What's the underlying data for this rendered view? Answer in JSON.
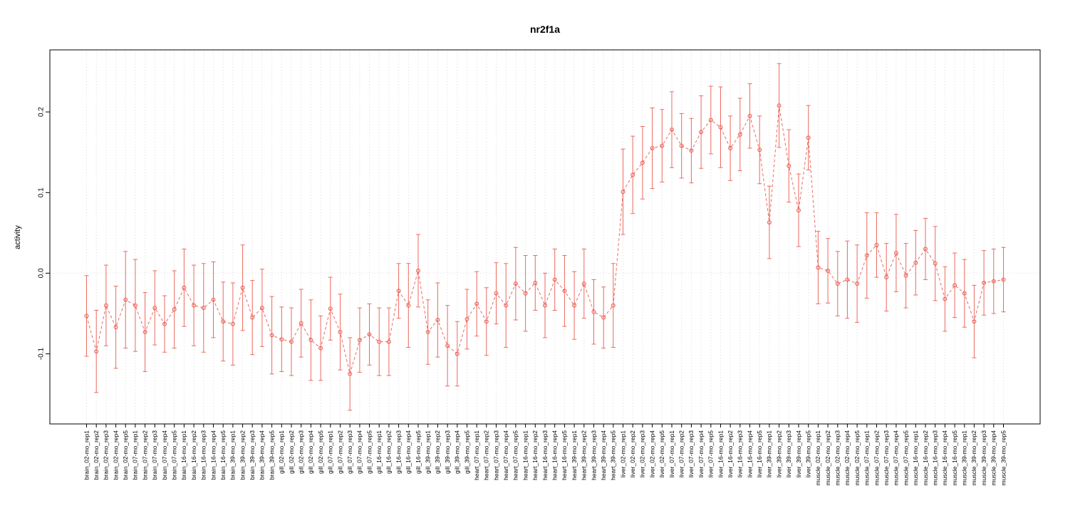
{
  "chart_data": {
    "type": "scatter",
    "title": "nr2f1a",
    "xlabel": "",
    "ylabel": "activity",
    "ylim": [
      -0.187,
      0.277
    ],
    "yticks": [
      -0.1,
      0.0,
      0.1,
      0.2
    ],
    "grid": true,
    "legend": false,
    "point_style": "open-circle-with-error-bars",
    "line_style": "dashed",
    "point_color": "#ec6a5f",
    "grid_color": "#dcdcdc",
    "categories": [
      "brain_02-mo_rep1",
      "brain_02-mo_rep2",
      "brain_02-mo_rep3",
      "brain_02-mo_rep4",
      "brain_02-mo_rep5",
      "brain_07-mo_rep1",
      "brain_07-mo_rep2",
      "brain_07-mo_rep3",
      "brain_07-mo_rep4",
      "brain_07-mo_rep5",
      "brain_16-mo_rep1",
      "brain_16-mo_rep2",
      "brain_16-mo_rep3",
      "brain_16-mo_rep4",
      "brain_16-mo_rep5",
      "brain_39-mo_rep1",
      "brain_39-mo_rep2",
      "brain_39-mo_rep3",
      "brain_39-mo_rep4",
      "brain_39-mo_rep5",
      "gill_02-mo_rep1",
      "gill_02-mo_rep2",
      "gill_02-mo_rep3",
      "gill_02-mo_rep4",
      "gill_02-mo_rep5",
      "gill_07-mo_rep1",
      "gill_07-mo_rep2",
      "gill_07-mo_rep3",
      "gill_07-mo_rep4",
      "gill_07-mo_rep5",
      "gill_16-mo_rep1",
      "gill_16-mo_rep2",
      "gill_16-mo_rep3",
      "gill_16-mo_rep4",
      "gill_16-mo_rep5",
      "gill_39-mo_rep1",
      "gill_39-mo_rep2",
      "gill_39-mo_rep3",
      "gill_39-mo_rep4",
      "gill_39-mo_rep5",
      "heart_07-mo_rep1",
      "heart_07-mo_rep2",
      "heart_07-mo_rep3",
      "heart_07-mo_rep4",
      "heart_07-mo_rep5",
      "heart_16-mo_rep1",
      "heart_16-mo_rep2",
      "heart_16-mo_rep3",
      "heart_16-mo_rep4",
      "heart_16-mo_rep5",
      "heart_39-mo_rep1",
      "heart_39-mo_rep2",
      "heart_39-mo_rep3",
      "heart_39-mo_rep4",
      "heart_39-mo_rep5",
      "liver_02-mo_rep1",
      "liver_02-mo_rep2",
      "liver_02-mo_rep3",
      "liver_02-mo_rep4",
      "liver_02-mo_rep5",
      "liver_07-mo_rep1",
      "liver_07-mo_rep2",
      "liver_07-mo_rep3",
      "liver_07-mo_rep4",
      "liver_07-mo_rep5",
      "liver_16-mo_rep1",
      "liver_16-mo_rep2",
      "liver_16-mo_rep3",
      "liver_16-mo_rep4",
      "liver_16-mo_rep5",
      "liver_39-mo_rep1",
      "liver_39-mo_rep2",
      "liver_39-mo_rep3",
      "liver_39-mo_rep4",
      "liver_39-mo_rep5",
      "muscle_02-mo_rep1",
      "muscle_02-mo_rep2",
      "muscle_02-mo_rep3",
      "muscle_02-mo_rep4",
      "muscle_02-mo_rep5",
      "muscle_07-mo_rep1",
      "muscle_07-mo_rep2",
      "muscle_07-mo_rep3",
      "muscle_07-mo_rep4",
      "muscle_07-mo_rep5",
      "muscle_16-mo_rep1",
      "muscle_16-mo_rep2",
      "muscle_16-mo_rep3",
      "muscle_16-mo_rep4",
      "muscle_16-mo_rep5",
      "muscle_39-mo_rep1",
      "muscle_39-mo_rep2",
      "muscle_39-mo_rep3",
      "muscle_39-mo_rep4",
      "muscle_39-mo_rep5"
    ],
    "values": [
      -0.053,
      -0.097,
      -0.04,
      -0.067,
      -0.033,
      -0.04,
      -0.073,
      -0.043,
      -0.063,
      -0.045,
      -0.018,
      -0.04,
      -0.043,
      -0.033,
      -0.06,
      -0.063,
      -0.018,
      -0.055,
      -0.043,
      -0.077,
      -0.082,
      -0.085,
      -0.062,
      -0.083,
      -0.093,
      -0.044,
      -0.073,
      -0.125,
      -0.083,
      -0.076,
      -0.085,
      -0.085,
      -0.022,
      -0.04,
      0.003,
      -0.073,
      -0.058,
      -0.09,
      -0.1,
      -0.057,
      -0.038,
      -0.06,
      -0.025,
      -0.04,
      -0.013,
      -0.025,
      -0.012,
      -0.04,
      -0.008,
      -0.022,
      -0.04,
      -0.013,
      -0.048,
      -0.055,
      -0.04,
      0.101,
      0.122,
      0.137,
      0.155,
      0.158,
      0.178,
      0.158,
      0.152,
      0.175,
      0.19,
      0.181,
      0.155,
      0.172,
      0.195,
      0.153,
      0.063,
      0.208,
      0.133,
      0.078,
      0.168,
      0.007,
      0.003,
      -0.013,
      -0.008,
      -0.013,
      0.022,
      0.035,
      -0.005,
      0.025,
      -0.003,
      0.013,
      0.03,
      0.012,
      -0.032,
      -0.015,
      -0.025,
      -0.06,
      -0.012,
      -0.01,
      -0.008
    ],
    "errors": [
      0.05,
      0.051,
      0.05,
      0.051,
      0.06,
      0.057,
      0.049,
      0.046,
      0.035,
      0.048,
      0.048,
      0.05,
      0.055,
      0.047,
      0.049,
      0.051,
      0.053,
      0.046,
      0.048,
      0.048,
      0.04,
      0.042,
      0.042,
      0.05,
      0.04,
      0.039,
      0.047,
      0.045,
      0.04,
      0.038,
      0.042,
      0.042,
      0.034,
      0.052,
      0.045,
      0.04,
      0.046,
      0.05,
      0.04,
      0.037,
      0.04,
      0.042,
      0.038,
      0.052,
      0.045,
      0.047,
      0.034,
      0.04,
      0.038,
      0.044,
      0.042,
      0.043,
      0.04,
      0.038,
      0.052,
      0.053,
      0.048,
      0.045,
      0.05,
      0.045,
      0.047,
      0.04,
      0.04,
      0.045,
      0.042,
      0.05,
      0.04,
      0.045,
      0.04,
      0.042,
      0.045,
      0.052,
      0.045,
      0.045,
      0.04,
      0.045,
      0.04,
      0.04,
      0.048,
      0.048,
      0.053,
      0.04,
      0.042,
      0.048,
      0.04,
      0.04,
      0.038,
      0.046,
      0.04,
      0.04,
      0.042,
      0.045,
      0.04,
      0.04,
      0.04
    ]
  }
}
